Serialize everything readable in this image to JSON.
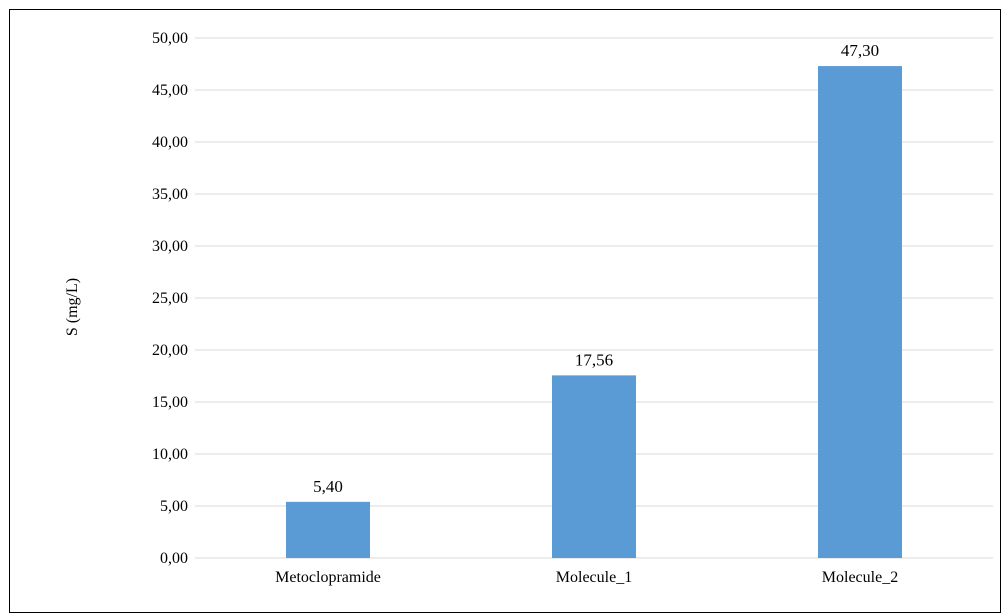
{
  "chart_data": {
    "type": "bar",
    "title": "",
    "xlabel": "",
    "ylabel": "S (mg/L)",
    "categories": [
      "Metoclopramide",
      "Molecule_1",
      "Molecule_2"
    ],
    "values": [
      5.4,
      17.56,
      47.3
    ],
    "value_labels": [
      "5,40",
      "17,56",
      "47,30"
    ],
    "ylim": [
      0,
      50
    ],
    "ytick_values": [
      0,
      5,
      10,
      15,
      20,
      25,
      30,
      35,
      40,
      45,
      50
    ],
    "ytick_labels": [
      "0,00",
      "5,00",
      "10,00",
      "15,00",
      "20,00",
      "25,00",
      "30,00",
      "35,00",
      "40,00",
      "45,00",
      "50,00"
    ],
    "grid": true,
    "legend": "none",
    "colors": {
      "bar": "#5b9bd5",
      "grid": "#d9d9d9",
      "text": "#000000",
      "border": "#000000"
    }
  }
}
